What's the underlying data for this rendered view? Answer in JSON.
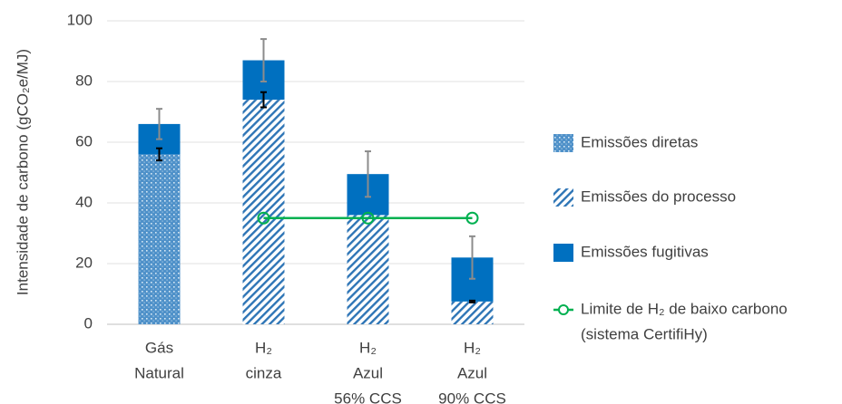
{
  "chart_data": {
    "type": "bar",
    "y_label": "Intensidade de carbono (gCO₂e/MJ)",
    "categories": [
      [
        "Gás",
        "Natural"
      ],
      [
        "H₂",
        "cinza"
      ],
      [
        "H₂",
        "Azul",
        "56% CCS"
      ],
      [
        "H₂",
        "Azul",
        "90% CCS"
      ]
    ],
    "ylim": [
      0,
      100
    ],
    "yticks": [
      0,
      20,
      40,
      60,
      80,
      100
    ],
    "grid": true,
    "series": [
      {
        "name": [
          "Emissões diretas"
        ],
        "color": "#4f91c9",
        "pattern": "dots",
        "values": [
          56,
          null,
          null,
          null
        ],
        "errors": [
          2,
          null,
          null,
          null
        ],
        "error_color": "#000000"
      },
      {
        "name": [
          "Emissões do processo"
        ],
        "color": "#2e75b6",
        "pattern": "hatch",
        "values": [
          null,
          74,
          36,
          7.5
        ],
        "errors": [
          null,
          2.5,
          null,
          0.3
        ],
        "error_color": "#000000"
      },
      {
        "name": [
          "Emissões fugitivas"
        ],
        "color": "#0070c0",
        "pattern": "solid",
        "values": [
          10,
          13,
          13.5,
          14.5
        ],
        "errors": [
          5,
          7,
          7.5,
          7
        ],
        "error_color": "#8c8c8c"
      },
      {
        "name": [
          "Limite de H₂ de baixo carbono",
          "(sistema CertifiHy)"
        ],
        "color": "#00b050",
        "kind": "line",
        "values": [
          null,
          35,
          35,
          35
        ]
      }
    ]
  }
}
